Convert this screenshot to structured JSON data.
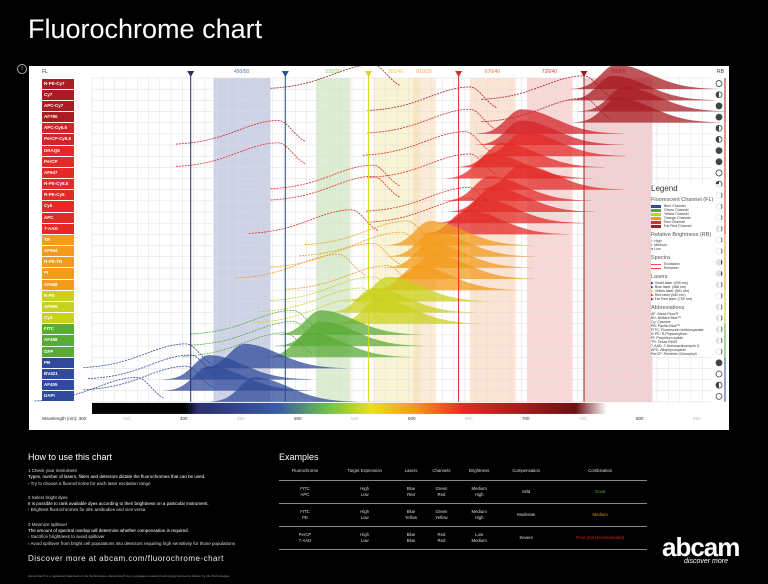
{
  "title": "Fluorochrome chart",
  "header": {
    "fl": "FL",
    "rb": "RB",
    "filters": [
      {
        "label": "450/50",
        "center": 450,
        "width": 50,
        "color": "#9ba6cf",
        "text": "#5a6ab0"
      },
      {
        "label": "530/30",
        "center": 530,
        "width": 30,
        "color": "#b9dca3",
        "text": "#8cc36a"
      },
      {
        "label": "585/40",
        "center": 585,
        "width": 40,
        "color": "#f4ecaa",
        "text": "#e8d04a"
      },
      {
        "label": "610/20",
        "center": 610,
        "width": 20,
        "color": "#f9d7ad",
        "text": "#f0a040"
      },
      {
        "label": "670/40",
        "center": 670,
        "width": 40,
        "color": "#f8c9a8",
        "text": "#e8703a"
      },
      {
        "label": "720/40",
        "center": 720,
        "width": 40,
        "color": "#f3b2b2",
        "text": "#d84040"
      },
      {
        "label": "780/60",
        "center": 780,
        "width": 60,
        "color": "#e3a3a5",
        "text": "#b01c22"
      }
    ]
  },
  "lasers": [
    {
      "nm": 405,
      "color": "#2b2f6e"
    },
    {
      "nm": 488,
      "color": "#2d4c9c"
    },
    {
      "nm": 561,
      "color": "#d6d61e"
    },
    {
      "nm": 640,
      "color": "#e32a25"
    },
    {
      "nm": 750,
      "color": "#a01c22"
    }
  ],
  "chart_data": {
    "type": "spectra",
    "xlabel": "Wavelength (nm):",
    "xlim": [
      300,
      850
    ],
    "xticks": [
      300,
      350,
      400,
      450,
      500,
      550,
      600,
      650,
      700,
      750,
      800,
      850
    ],
    "rows": [
      {
        "name": "R-PE-Cy7",
        "ex": 565,
        "em": 778,
        "color": "#a81c22",
        "rb": "high"
      },
      {
        "name": "Cy7",
        "ex": 750,
        "em": 775,
        "color": "#a81c22",
        "rb": "medium"
      },
      {
        "name": "APC-Cy7",
        "ex": 650,
        "em": 785,
        "color": "#a81c22",
        "rb": "low"
      },
      {
        "name": "AF780",
        "ex": 750,
        "em": 780,
        "color": "#a81c22",
        "rb": "low"
      },
      {
        "name": "APC-Cy5.5",
        "ex": 650,
        "em": 695,
        "color": "#d4242a",
        "rb": "medium"
      },
      {
        "name": "PerCP-Cy5.5",
        "ex": 482,
        "em": 695,
        "color": "#d4242a",
        "rb": "medium"
      },
      {
        "name": "DRAQ5",
        "ex": 646,
        "em": 697,
        "color": "#e32a25",
        "rb": "low"
      },
      {
        "name": "PerCP",
        "ex": 482,
        "em": 678,
        "color": "#e32a25",
        "rb": "low"
      },
      {
        "name": "AF647",
        "ex": 650,
        "em": 668,
        "color": "#e32a25",
        "rb": "high"
      },
      {
        "name": "R-PE-Cy5.5",
        "ex": 565,
        "em": 695,
        "color": "#e32a25",
        "rb": "medium"
      },
      {
        "name": "R-PE-Cy5",
        "ex": 565,
        "em": 667,
        "color": "#e32a25",
        "rb": "high"
      },
      {
        "name": "Cy5",
        "ex": 649,
        "em": 670,
        "color": "#e32a25",
        "rb": "high"
      },
      {
        "name": "APC",
        "ex": 650,
        "em": 660,
        "color": "#e32a25",
        "rb": "high"
      },
      {
        "name": "7-AAD",
        "ex": 546,
        "em": 647,
        "color": "#e32a25",
        "rb": "medium"
      },
      {
        "name": "TR",
        "ex": 595,
        "em": 615,
        "color": "#f39b1b",
        "rb": "high"
      },
      {
        "name": "AF594",
        "ex": 590,
        "em": 617,
        "color": "#f39b1b",
        "rb": "high"
      },
      {
        "name": "R-PE-TR",
        "ex": 565,
        "em": 615,
        "color": "#f39b1b",
        "rb": "low"
      },
      {
        "name": "PI",
        "ex": 535,
        "em": 617,
        "color": "#f39b1b",
        "rb": "low"
      },
      {
        "name": "AF568",
        "ex": 578,
        "em": 603,
        "color": "#f39b1b",
        "rb": "medium"
      },
      {
        "name": "R-PE",
        "ex": 565,
        "em": 578,
        "color": "#c8d21b",
        "rb": "high"
      },
      {
        "name": "AF555",
        "ex": 555,
        "em": 565,
        "color": "#c8d21b",
        "rb": "medium"
      },
      {
        "name": "Cy3",
        "ex": 550,
        "em": 570,
        "color": "#c8d21b",
        "rb": "medium"
      },
      {
        "name": "FITC",
        "ex": 495,
        "em": 519,
        "color": "#5aab35",
        "rb": "medium"
      },
      {
        "name": "AF488",
        "ex": 495,
        "em": 519,
        "color": "#5aab35",
        "rb": "medium"
      },
      {
        "name": "GFP",
        "ex": 488,
        "em": 509,
        "color": "#5aab35",
        "rb": "high"
      },
      {
        "name": "PB",
        "ex": 401,
        "em": 452,
        "color": "#2f4a9a",
        "rb": "low"
      },
      {
        "name": "BV421",
        "ex": 405,
        "em": 421,
        "color": "#2f4a9a",
        "rb": "high"
      },
      {
        "name": "AF405",
        "ex": 401,
        "em": 421,
        "color": "#2f4a9a",
        "rb": "medium"
      },
      {
        "name": "DAPI",
        "ex": 358,
        "em": 461,
        "color": "#2f4a9a",
        "rb": "high"
      }
    ]
  },
  "legend": {
    "title": "Legend",
    "fl_title": "Fluorescent Channel (FL)",
    "channels": [
      {
        "label": "Blue Channel",
        "color": "#2f4a9a"
      },
      {
        "label": "Green Channel",
        "color": "#5aab35"
      },
      {
        "label": "Yellow Channel",
        "color": "#c8d21b"
      },
      {
        "label": "Orange Channel",
        "color": "#f39b1b"
      },
      {
        "label": "Red Channel",
        "color": "#e32a25"
      },
      {
        "label": "Far Red Channel",
        "color": "#a81c22"
      }
    ],
    "rb_title": "Relative Brightness (RB)",
    "rb": {
      "high": "High",
      "medium": "Medium",
      "low": "Low"
    },
    "spectra_title": "Spectra",
    "excitation": "Excitation",
    "emission": "Emission",
    "lasers_title": "Lasers",
    "lasers": [
      "Violet laser (405 nm)",
      "Blue laser (488 nm)",
      "Yellow laser (561 nm)",
      "Red laser (640 nm)",
      "Far Red laser (750 nm)"
    ],
    "abbr_title": "Abbreviations",
    "abbr": [
      "AF: Alexa Fluor®",
      "BV: Brilliant Blue™",
      "Cy: Cyanine",
      "PB: Pacific Blue™",
      "FITC: Fluorescein isothiocyanate",
      "R-PE: R-Phycoerythrin",
      "PI: Propidium iodide",
      "TR: Texas Red®",
      "7-AAD: 7-Aminoactinomycin D",
      "APC: Allophycocyanin",
      "PerCP: Peridinin Chlorophyll"
    ]
  },
  "howto": {
    "title": "How to use this chart",
    "steps": [
      {
        "head": "1 Check your instrument",
        "body": "Types, number of lasers, filters and detectors dictate the fluorochromes that can be used.",
        "tips": [
          "Try to choose a fluorochrome for each laser excitation range"
        ]
      },
      {
        "head": "2 Select bright dyes",
        "body": "It is possible to rank available dyes according to their brightness on a particular instrument.",
        "tips": [
          "Brightest fluorochromes for dim antibodies and vice versa"
        ]
      },
      {
        "head": "3 Minimize spillover",
        "body": "The amount of spectral overlap will determine whether compensation is required.",
        "tips": [
          "Sacrifice brightness to avoid spillover",
          "Avoid spillover from bright cell populations into detectors requiring high sensitivity for those populations"
        ]
      }
    ]
  },
  "discover": "Discover more at abcam.com/fluorochrome-chart",
  "footnote": "Alexa Fluor® is a registered trademark of Life Technologies. Alexa Fluor® dye conjugates contain(s) technology licensed to Abcam by Life Technologies.",
  "examples": {
    "title": "Examples",
    "headers": [
      "Fluorochrome",
      "Target Expression",
      "Lasers",
      "Channels",
      "Brightness",
      "Compensation",
      "Combination"
    ],
    "rows": [
      {
        "cells": [
          [
            "FITC",
            "APC"
          ],
          [
            "High",
            "Low"
          ],
          [
            "Blue",
            "Red"
          ],
          [
            "Green",
            "Red"
          ],
          [
            "Medium",
            "High"
          ],
          [
            "Mild"
          ]
        ],
        "combination": "Good",
        "combo_color": "#6aad2a"
      },
      {
        "cells": [
          [
            "FITC",
            "PE"
          ],
          [
            "High",
            "Low"
          ],
          [
            "Blue",
            "Yellow"
          ],
          [
            "Green",
            "Yellow"
          ],
          [
            "Medium",
            "High"
          ],
          [
            "Moderate"
          ]
        ],
        "combination": "Medium",
        "combo_color": "#e8891b"
      },
      {
        "cells": [
          [
            "PerCP",
            "7-AAD"
          ],
          [
            "High",
            "Low"
          ],
          [
            "Blue",
            "Blue"
          ],
          [
            "Red",
            "Red"
          ],
          [
            "Low",
            "Medium"
          ],
          [
            "Severe"
          ]
        ],
        "combination": "Poor (not recommended)",
        "combo_color": "#e32a25"
      }
    ]
  },
  "brand": {
    "logo": "abcam",
    "tagline": "discover more"
  }
}
